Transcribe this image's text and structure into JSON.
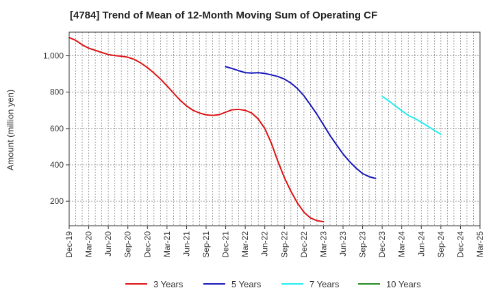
{
  "chart_data": {
    "type": "line",
    "title": "[4784]  Trend of Mean of 12-Month Moving Sum of Operating CF",
    "xlabel": "",
    "ylabel": "Amount (million yen)",
    "ylim": [
      65,
      1130
    ],
    "yticks": [
      200,
      400,
      600,
      800,
      1000
    ],
    "ytick_labels": [
      "200",
      "400",
      "600",
      "800",
      "1,000"
    ],
    "x_categories": [
      "Dec-19",
      "Mar-20",
      "Jun-20",
      "Sep-20",
      "Dec-20",
      "Mar-21",
      "Jun-21",
      "Sep-21",
      "Dec-21",
      "Mar-22",
      "Jun-22",
      "Sep-22",
      "Dec-22",
      "Mar-23",
      "Jun-23",
      "Sep-23",
      "Dec-23",
      "Mar-24",
      "Jun-24",
      "Sep-24",
      "Dec-24",
      "Mar-25"
    ],
    "grid": true,
    "legend_position": "bottom",
    "series": [
      {
        "name": "3 Years",
        "color": "#dd1111",
        "start_index": 0,
        "values": [
          1100,
          1085,
          1060,
          1042,
          1030,
          1018,
          1007,
          1001,
          998,
          992,
          980,
          960,
          935,
          905,
          872,
          835,
          795,
          756,
          724,
          700,
          685,
          675,
          672,
          676,
          690,
          703,
          705,
          700,
          685,
          652,
          600,
          520,
          420,
          330,
          255,
          190,
          140,
          108,
          93,
          87
        ]
      },
      {
        "name": "5 Years",
        "color": "#1515bb",
        "start_index": 24,
        "values": [
          940,
          930,
          918,
          907,
          905,
          907,
          903,
          895,
          886,
          872,
          850,
          820,
          780,
          730,
          678,
          620,
          562,
          510,
          460,
          418,
          382,
          352,
          335,
          325
        ]
      },
      {
        "name": "7 Years",
        "color": "#22eeee",
        "start_index": 48,
        "values": [
          777,
          752,
          725,
          698,
          672,
          655,
          635,
          612,
          590,
          568
        ]
      },
      {
        "name": "10 Years",
        "color": "#228b22",
        "start_index": 0,
        "values": []
      }
    ]
  }
}
